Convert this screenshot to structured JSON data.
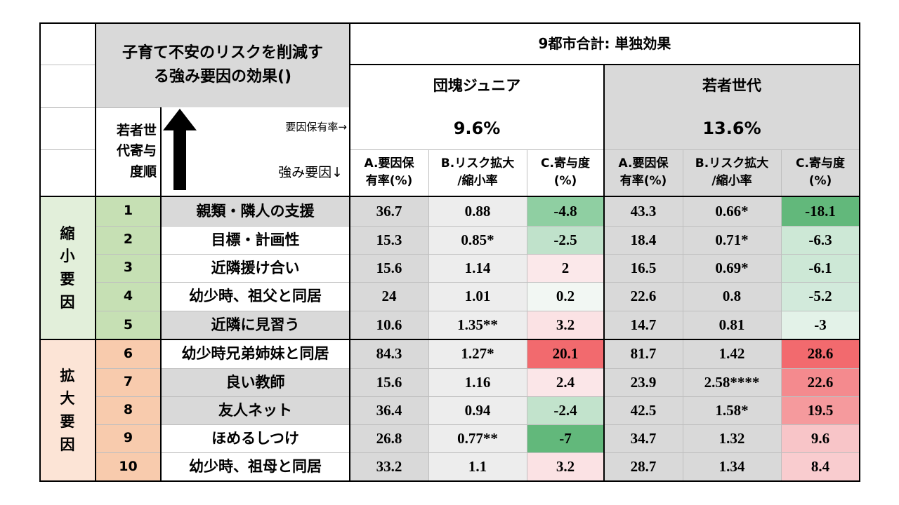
{
  "title": {
    "line1": "子育て不安のリスクを削減す",
    "line2": "る強み要因の効果()"
  },
  "header": {
    "scope": "9都市合計: 単独効果",
    "groups": [
      {
        "name": "団塊ジュニア",
        "rate": "9.6%"
      },
      {
        "name": "若者世代",
        "rate": "13.6%"
      }
    ],
    "rank_label_lines": [
      "若者世",
      "代寄与",
      "度順"
    ],
    "rate_label": "要因保有率→",
    "factor_label": "強み要因↓",
    "arrow_icon": "up-arrow-icon",
    "columns": [
      {
        "line1": "A.要因保",
        "line2": "有率(%)"
      },
      {
        "line1": "B.リスク拡大",
        "line2": "/縮小率"
      },
      {
        "line1": "C.寄与度",
        "line2": "(%)"
      }
    ]
  },
  "categories": [
    {
      "chars": [
        "縮",
        "小",
        "要",
        "因"
      ]
    },
    {
      "chars": [
        "拡",
        "大",
        "要",
        "因"
      ]
    }
  ],
  "rows": [
    {
      "rank": "1",
      "factor": "親類・隣人の支援",
      "jA": "36.7",
      "jB": "0.88",
      "jC": "-4.8",
      "wA": "43.3",
      "wB": "0.66*",
      "wC": "-18.1",
      "jC_color": "#8fcfa2",
      "wC_color": "#62b87b"
    },
    {
      "rank": "2",
      "factor": "目標・計画性",
      "jA": "15.3",
      "jB": "0.85*",
      "jC": "-2.5",
      "wA": "18.4",
      "wB": "0.71*",
      "wC": "-6.3",
      "jC_color": "#c0e2cb",
      "wC_color": "#cde8d6"
    },
    {
      "rank": "3",
      "factor": "近隣援け合い",
      "jA": "15.6",
      "jB": "1.14",
      "jC": "2",
      "wA": "16.5",
      "wB": "0.69*",
      "wC": "-6.1",
      "jC_color": "#fbe8ea",
      "wC_color": "#cde8d6"
    },
    {
      "rank": "4",
      "factor": "幼少時、祖父と同居",
      "jA": "24",
      "jB": "1.01",
      "jC": "0.2",
      "wA": "22.6",
      "wB": "0.8",
      "wC": "-5.2",
      "jC_color": "#f2f7f3",
      "wC_color": "#d2eadb"
    },
    {
      "rank": "5",
      "factor": "近隣に見習う",
      "jA": "10.6",
      "jB": "1.35**",
      "jC": "3.2",
      "wA": "14.7",
      "wB": "0.81",
      "wC": "-3",
      "jC_color": "#fbe2e4",
      "wC_color": "#e3f2e8"
    },
    {
      "rank": "6",
      "factor": "幼少時兄弟姉妹と同居",
      "jA": "84.3",
      "jB": "1.27*",
      "jC": "20.1",
      "wA": "81.7",
      "wB": "1.42",
      "wC": "28.6",
      "jC_color": "#f26a6e",
      "wC_color": "#f26a6e"
    },
    {
      "rank": "7",
      "factor": "良い教師",
      "jA": "15.6",
      "jB": "1.16",
      "jC": "2.4",
      "wA": "23.9",
      "wB": "2.58****",
      "wC": "22.6",
      "jC_color": "#fbe6e8",
      "wC_color": "#f48a8e"
    },
    {
      "rank": "8",
      "factor": "友人ネット",
      "jA": "36.4",
      "jB": "0.94",
      "jC": "-2.4",
      "wA": "42.5",
      "wB": "1.58*",
      "wC": "19.5",
      "jC_color": "#c2e3cc",
      "wC_color": "#f59a9d"
    },
    {
      "rank": "9",
      "factor": "ほめるしつけ",
      "jA": "26.8",
      "jB": "0.77**",
      "jC": "-7",
      "wA": "34.7",
      "wB": "1.32",
      "wC": "9.6",
      "jC_color": "#62b87b",
      "wC_color": "#f8c5c8"
    },
    {
      "rank": "10",
      "factor": "幼少時、祖母と同居",
      "jA": "33.2",
      "jB": "1.1",
      "jC": "3.2",
      "wA": "28.7",
      "wB": "1.34",
      "wC": "8.4",
      "jC_color": "#fbe2e4",
      "wC_color": "#f9cccf"
    }
  ]
}
